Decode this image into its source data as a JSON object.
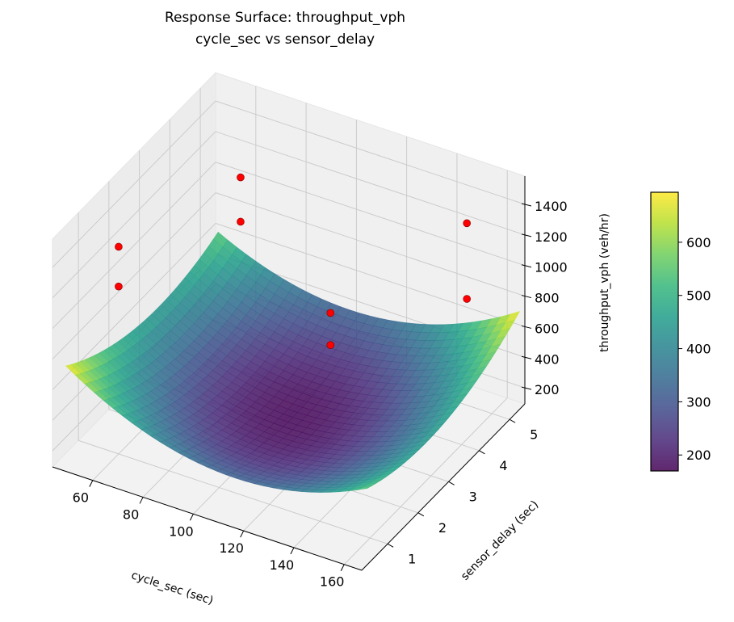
{
  "chart_data": {
    "type": "surface3d",
    "title": "Response Surface: throughput_vph",
    "subtitle": "cycle_sec vs sensor_delay",
    "xlabel": "cycle_sec (sec)",
    "ylabel": "sensor_delay (sec)",
    "zlabel": "throughput_vph (veh/hr)",
    "xlim": [
      44,
      167
    ],
    "ylim": [
      0.15,
      5.5
    ],
    "zlim": [
      95,
      1585
    ],
    "xticks": [
      60,
      80,
      100,
      120,
      140,
      160
    ],
    "yticks": [
      1,
      2,
      3,
      4,
      5
    ],
    "zticks": [
      200,
      400,
      600,
      800,
      1000,
      1200,
      1400
    ],
    "surface": {
      "x_range": [
        45,
        165
      ],
      "y_range": [
        0.5,
        5.5
      ],
      "model": "z = 175 + 0.08*(x-105)^2 + 25*(y-3)^2 + 0.47*(x-105)*(y-3)",
      "colormap": "viridis",
      "alpha": 0.85
    },
    "points": [
      {
        "x": 60,
        "y": 1,
        "z": 1450
      },
      {
        "x": 60,
        "y": 1,
        "z": 1190
      },
      {
        "x": 60,
        "y": 5,
        "z": 1090
      },
      {
        "x": 60,
        "y": 5,
        "z": 800
      },
      {
        "x": 120,
        "y": 3,
        "z": 940
      },
      {
        "x": 120,
        "y": 3,
        "z": 730
      },
      {
        "x": 150,
        "y": 5,
        "z": 1285
      },
      {
        "x": 150,
        "y": 5,
        "z": 790
      }
    ],
    "point_color": "#ff0000",
    "colorbar": {
      "range": [
        170,
        694
      ],
      "ticks": [
        200,
        300,
        400,
        500,
        600
      ]
    },
    "grid": true
  }
}
